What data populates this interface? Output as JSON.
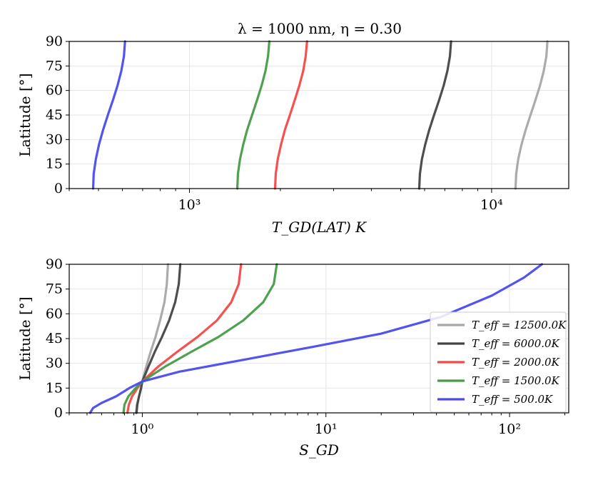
{
  "figure_title": "λ = 1000 nm, η = 0.30",
  "chart_data": [
    {
      "type": "line",
      "title": "λ = 1000 nm, η = 0.30",
      "xlabel": "T_GD(LAT) K",
      "ylabel": "Latitude [°]",
      "xscale": "log",
      "xlim": [
        400,
        18000
      ],
      "ylim": [
        0,
        90
      ],
      "xticks": [
        {
          "value": 1000,
          "label": "10³"
        },
        {
          "value": 10000,
          "label": "10⁴"
        }
      ],
      "yticks": [
        0,
        15,
        30,
        45,
        60,
        75,
        90
      ],
      "grid": true,
      "series": [
        {
          "name": "T_eff = 12500.0K",
          "color": "#a6a6a6",
          "x": [
            12000,
            12060,
            12250,
            12560,
            12970,
            13450,
            13960,
            14460,
            14880,
            15180,
            15300
          ],
          "y": [
            0,
            9,
            18,
            27,
            36,
            45,
            54,
            63,
            72,
            81,
            90
          ]
        },
        {
          "name": "T_eff = 6000.0K",
          "color": "#444444",
          "x": [
            5760,
            5790,
            5880,
            6030,
            6220,
            6450,
            6700,
            6940,
            7140,
            7280,
            7340
          ],
          "y": [
            0,
            9,
            18,
            27,
            36,
            45,
            54,
            63,
            72,
            81,
            90
          ]
        },
        {
          "name": "T_eff = 2000.0K",
          "color": "#f44848",
          "x": [
            1920,
            1930,
            1960,
            2010,
            2070,
            2150,
            2230,
            2310,
            2380,
            2425,
            2450
          ],
          "y": [
            0,
            9,
            18,
            27,
            36,
            45,
            54,
            63,
            72,
            81,
            90
          ]
        },
        {
          "name": "T_eff = 1500.0K",
          "color": "#459c45",
          "x": [
            1440,
            1447,
            1470,
            1507,
            1553,
            1612,
            1673,
            1733,
            1785,
            1820,
            1838
          ],
          "y": [
            0,
            9,
            18,
            27,
            36,
            45,
            54,
            63,
            72,
            81,
            90
          ]
        },
        {
          "name": "T_eff = 500.0K",
          "color": "#4a4af0",
          "x": [
            480,
            482,
            490,
            502,
            518,
            537,
            558,
            578,
            595,
            607,
            612
          ],
          "y": [
            0,
            9,
            18,
            27,
            36,
            45,
            54,
            63,
            72,
            81,
            90
          ]
        }
      ]
    },
    {
      "type": "line",
      "title": "",
      "xlabel": "S_GD",
      "ylabel": "Latitude [°]",
      "xscale": "log",
      "xlim": [
        0.4,
        210
      ],
      "ylim": [
        0,
        90
      ],
      "xticks": [
        {
          "value": 1,
          "label": "10⁰"
        },
        {
          "value": 10,
          "label": "10¹"
        },
        {
          "value": 100,
          "label": "10²"
        }
      ],
      "yticks": [
        0,
        15,
        30,
        45,
        60,
        75,
        90
      ],
      "grid": true,
      "legend_position": "lower-right",
      "legend": [
        {
          "label": "T_eff = 12500.0K",
          "color": "#a6a6a6"
        },
        {
          "label": "T_eff = 6000.0K",
          "color": "#444444"
        },
        {
          "label": "T_eff = 2000.0K",
          "color": "#f44848"
        },
        {
          "label": "T_eff = 1500.0K",
          "color": "#459c45"
        },
        {
          "label": "T_eff = 500.0K",
          "color": "#4a4af0"
        }
      ],
      "series": [
        {
          "name": "T_eff = 12500.0K",
          "color": "#a6a6a6",
          "x": [
            0.925,
            0.935,
            0.96,
            0.985,
            1.0,
            1.05,
            1.11,
            1.18,
            1.25,
            1.32,
            1.36,
            1.38
          ],
          "y": [
            0,
            5,
            10,
            15,
            19,
            28,
            37,
            46,
            56,
            67,
            78,
            90
          ]
        },
        {
          "name": "T_eff = 6000.0K",
          "color": "#444444",
          "x": [
            0.93,
            0.94,
            0.96,
            0.985,
            1.0,
            1.08,
            1.17,
            1.28,
            1.4,
            1.51,
            1.58,
            1.61
          ],
          "y": [
            0,
            5,
            10,
            15,
            19,
            28,
            37,
            46,
            56,
            67,
            78,
            90
          ]
        },
        {
          "name": "T_eff = 2000.0K",
          "color": "#f44848",
          "x": [
            0.83,
            0.845,
            0.88,
            0.94,
            1.0,
            1.22,
            1.55,
            2.0,
            2.55,
            3.05,
            3.35,
            3.45
          ],
          "y": [
            0,
            5,
            10,
            15,
            19,
            28,
            37,
            46,
            56,
            67,
            78,
            90
          ]
        },
        {
          "name": "T_eff = 1500.0K",
          "color": "#459c45",
          "x": [
            0.79,
            0.8,
            0.84,
            0.92,
            1.0,
            1.33,
            1.85,
            2.6,
            3.55,
            4.55,
            5.2,
            5.4
          ],
          "y": [
            0,
            5,
            10,
            15,
            19,
            28,
            37,
            46,
            56,
            67,
            78,
            90
          ]
        },
        {
          "name": "T_eff = 500.0K",
          "color": "#4a4af0",
          "x": [
            0.52,
            0.54,
            0.6,
            0.72,
            0.85,
            1.0,
            1.6,
            3.5,
            8.5,
            20,
            42,
            80,
            120,
            150
          ],
          "y": [
            0,
            3,
            6,
            10,
            15,
            19,
            25,
            32,
            40,
            48,
            58,
            71,
            82,
            90
          ]
        }
      ]
    }
  ]
}
